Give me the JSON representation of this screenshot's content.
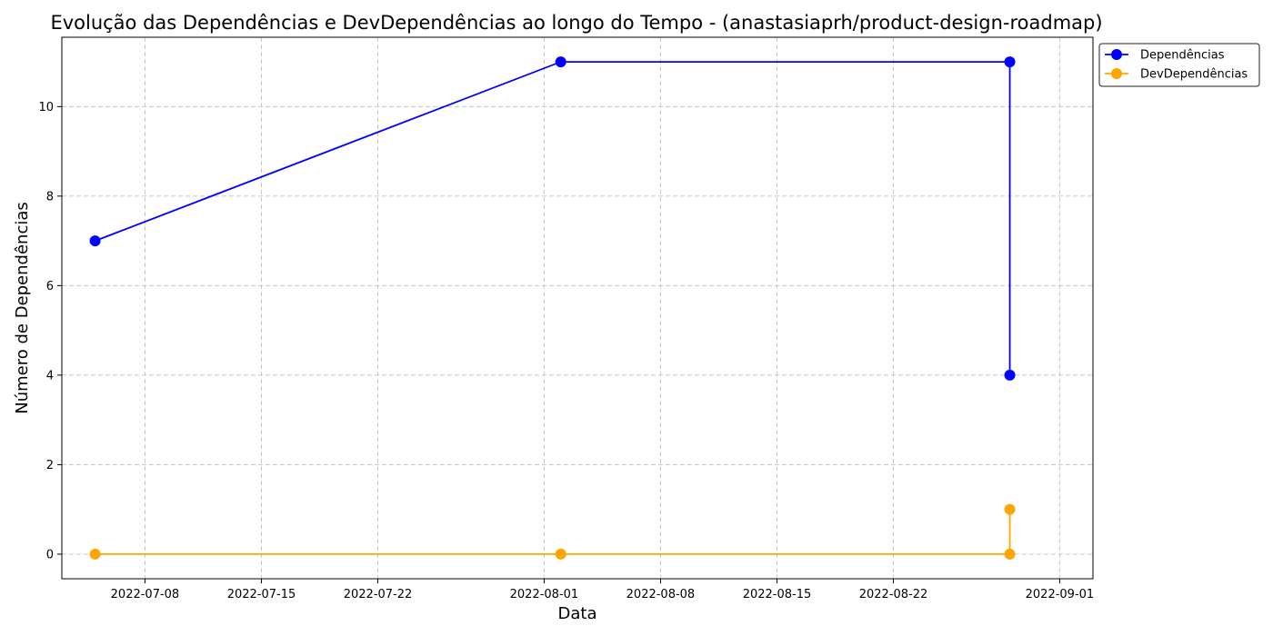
{
  "chart_data": {
    "type": "line",
    "title": "Evolução das Dependências e DevDependências ao longo do Tempo - (anastasiaprh/product-design-roadmap)",
    "xlabel": "Data",
    "ylabel": "Número de Dependências",
    "x_type": "date",
    "xlim": [
      "2022-07-03",
      "2022-08-31"
    ],
    "ylim": [
      -0.55,
      11.55
    ],
    "x_ticks": [
      "2022-07-08",
      "2022-07-15",
      "2022-07-22",
      "2022-08-01",
      "2022-08-08",
      "2022-08-15",
      "2022-08-22",
      "2022-09-01"
    ],
    "y_ticks": [
      0,
      2,
      4,
      6,
      8,
      10
    ],
    "grid": true,
    "legend_position": "upper-right-outside",
    "series": [
      {
        "name": "Dependências",
        "color": "#0000ff",
        "marker": "circle",
        "points": [
          {
            "x": "2022-07-05",
            "y": 7
          },
          {
            "x": "2022-08-02",
            "y": 11
          },
          {
            "x": "2022-08-29",
            "y": 11
          },
          {
            "x": "2022-08-29",
            "y": 4
          }
        ]
      },
      {
        "name": "DevDependências",
        "color": "#ffa500",
        "marker": "circle",
        "points": [
          {
            "x": "2022-07-05",
            "y": 0
          },
          {
            "x": "2022-08-02",
            "y": 0
          },
          {
            "x": "2022-08-29",
            "y": 0
          },
          {
            "x": "2022-08-29",
            "y": 1
          }
        ]
      }
    ]
  }
}
